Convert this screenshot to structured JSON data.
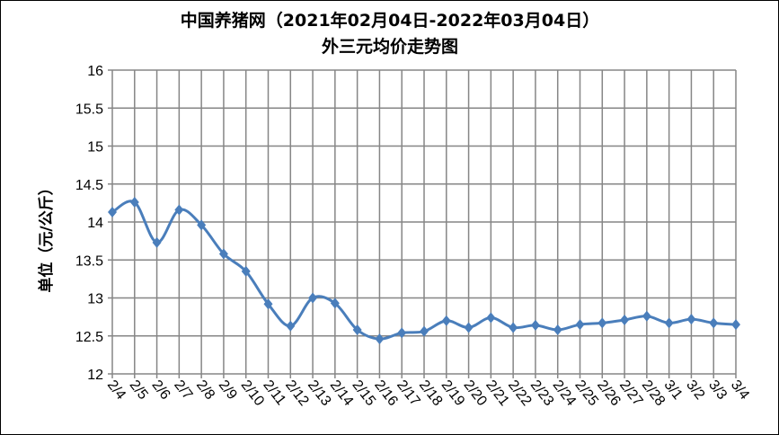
{
  "chart_data": {
    "type": "line",
    "title": "中国养猪网（2021年02月04日-2022年03月04日）",
    "subtitle": "外三元均价走势图",
    "xlabel": "",
    "ylabel": "单位（元/公斤）",
    "ylim": [
      12,
      16
    ],
    "yticks": [
      "12",
      "12.5",
      "13",
      "13.5",
      "14",
      "14.5",
      "15",
      "15.5",
      "16"
    ],
    "grid": true,
    "categories": [
      "2/4",
      "2/5",
      "2/6",
      "2/7",
      "2/8",
      "2/9",
      "2/10",
      "2/11",
      "2/12",
      "2/13",
      "2/14",
      "2/15",
      "2/16",
      "2/17",
      "2/18",
      "2/19",
      "2/20",
      "2/21",
      "2/22",
      "2/23",
      "2/24",
      "2/25",
      "2/26",
      "2/27",
      "2/28",
      "3/1",
      "3/2",
      "3/3",
      "3/4"
    ],
    "series": [
      {
        "name": "外三元均价",
        "color": "#4a7ebb",
        "values": [
          14.13,
          14.26,
          13.73,
          14.16,
          13.96,
          13.58,
          13.35,
          12.92,
          12.63,
          13.0,
          12.93,
          12.58,
          12.46,
          12.54,
          12.56,
          12.7,
          12.61,
          12.74,
          12.61,
          12.64,
          12.58,
          12.65,
          12.67,
          12.71,
          12.76,
          12.67,
          12.72,
          12.67,
          12.65
        ]
      }
    ]
  }
}
